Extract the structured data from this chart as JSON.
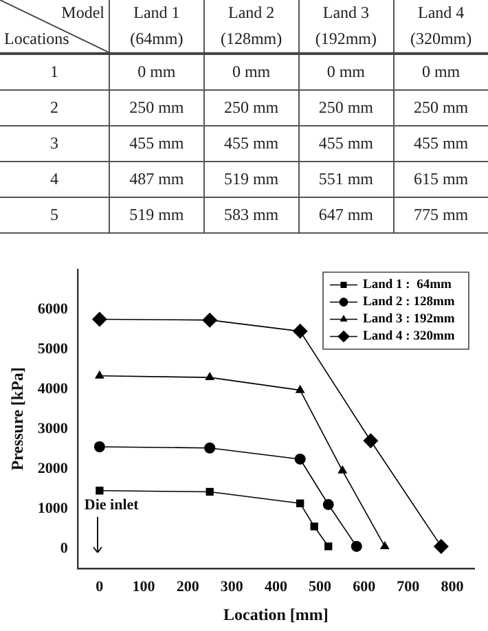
{
  "chart_data": {
    "type": "line",
    "xlabel": "Location [mm]",
    "ylabel": "Pressure [kPa]",
    "xlim": [
      -50,
      850
    ],
    "xticks": [
      0,
      100,
      200,
      300,
      400,
      500,
      600,
      700,
      800
    ],
    "ylim": [
      -500,
      7000
    ],
    "yticks": [
      0,
      1000,
      2000,
      3000,
      4000,
      5000,
      6000
    ],
    "legend": "top right",
    "grid": false,
    "series": [
      {
        "name": "Land 1 :  64mm",
        "color": "#000000",
        "marker": "square",
        "x": [
          0,
          250,
          455,
          487,
          519
        ],
        "values": [
          1450,
          1420,
          1130,
          550,
          50
        ]
      },
      {
        "name": "Land 2 : 128mm",
        "color": "#000000",
        "marker": "circle",
        "x": [
          0,
          250,
          455,
          519,
          583
        ],
        "values": [
          2550,
          2520,
          2240,
          1100,
          50
        ]
      },
      {
        "name": "Land 3 : 192mm",
        "color": "#000000",
        "marker": "triangle",
        "x": [
          0,
          250,
          455,
          551,
          647
        ],
        "values": [
          4330,
          4290,
          3970,
          1950,
          50
        ]
      },
      {
        "name": "Land 4 : 320mm",
        "color": "#000000",
        "marker": "diamond",
        "x": [
          0,
          250,
          455,
          615,
          775
        ],
        "values": [
          5750,
          5730,
          5450,
          2700,
          50
        ]
      }
    ],
    "annotations": [
      "Die inlet",
      "Model",
      "Locations",
      "Land  1\n(64mm)",
      "Land  2\n(128mm)",
      "Land  3\n(192mm)",
      "Land  4\n(320mm)",
      "1",
      "0  mm",
      "0  mm",
      "0  mm",
      "0  mm",
      "2",
      "250  mm",
      "250  mm",
      "250  mm",
      "250  mm",
      "3",
      "455  mm",
      "455  mm",
      "455  mm",
      "455  mm",
      "4",
      "487  mm",
      "519  mm",
      "551  mm",
      "615  mm",
      "5",
      "519  mm",
      "583  mm",
      "647  mm",
      "775  mm"
    ]
  }
}
